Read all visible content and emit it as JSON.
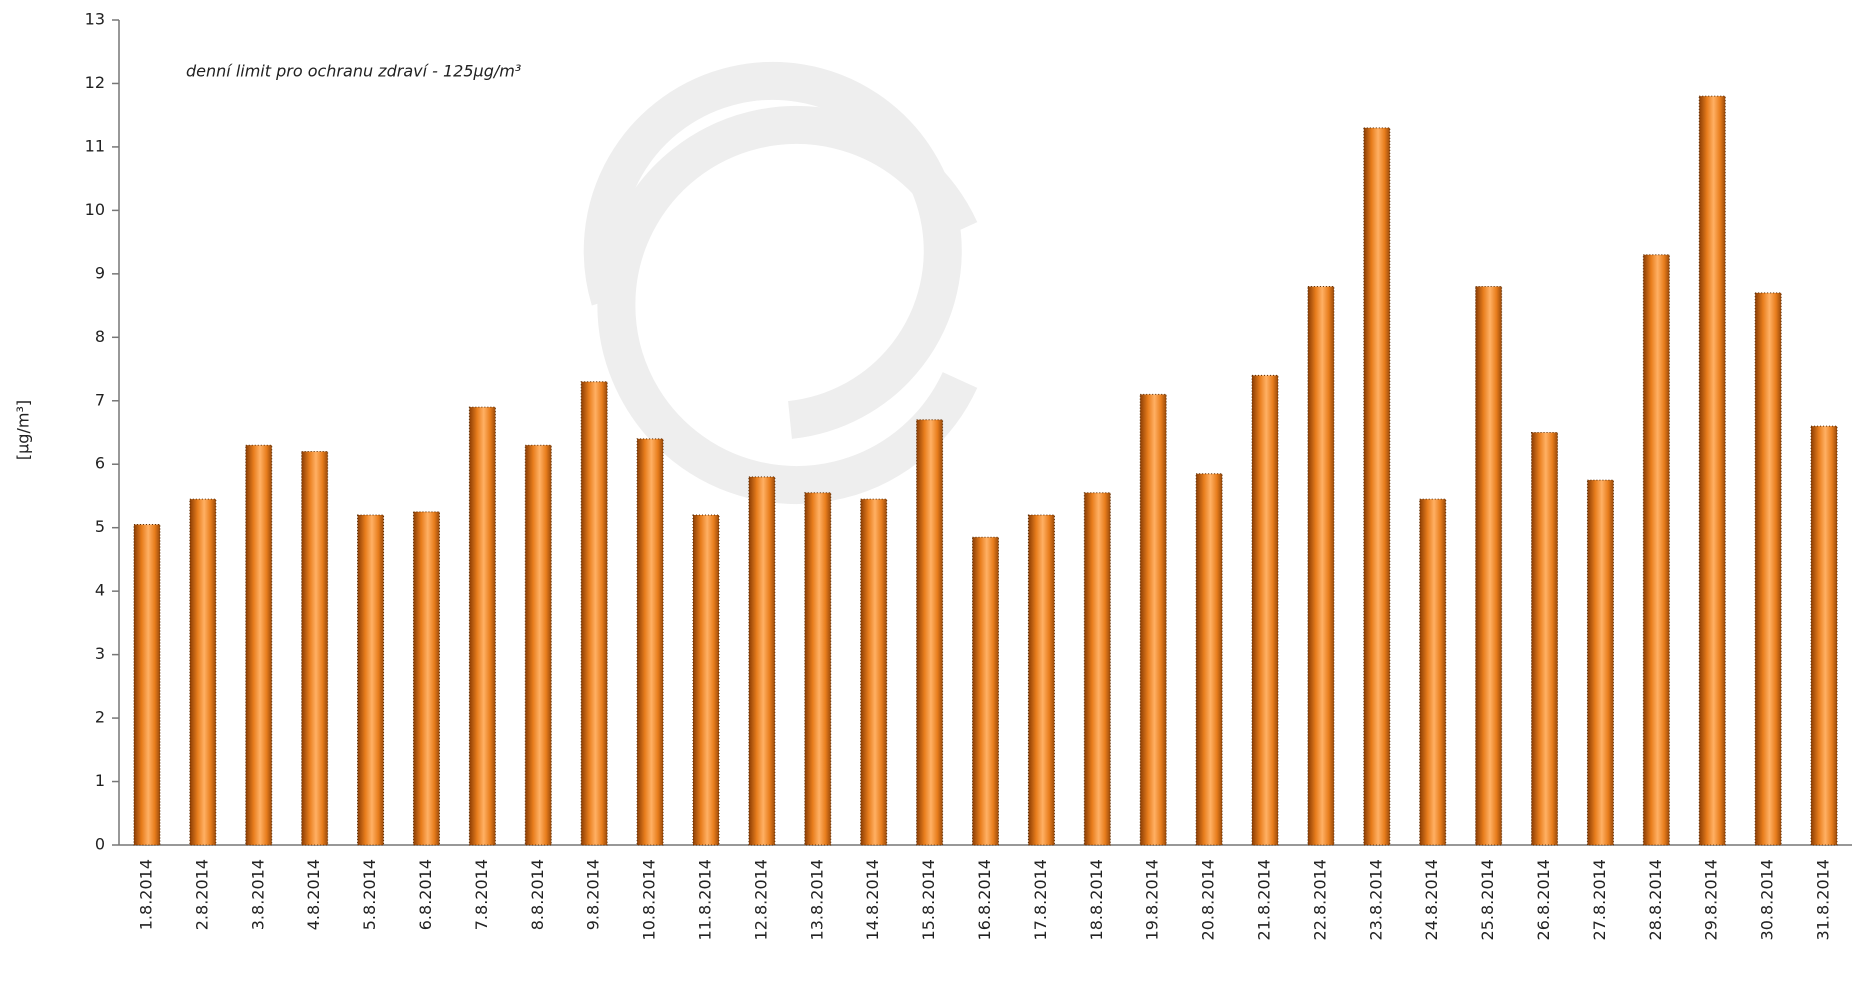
{
  "chart_data": {
    "type": "bar",
    "y_label": "[µg/m³]",
    "annotation": "denní limit pro ochranu zdraví - 125µg/m³",
    "annotation_color": "#e8202a",
    "categories": [
      "1.8.2014",
      "2.8.2014",
      "3.8.2014",
      "4.8.2014",
      "5.8.2014",
      "6.8.2014",
      "7.8.2014",
      "8.8.2014",
      "9.8.2014",
      "10.8.2014",
      "11.8.2014",
      "12.8.2014",
      "13.8.2014",
      "14.8.2014",
      "15.8.2014",
      "16.8.2014",
      "17.8.2014",
      "18.8.2014",
      "19.8.2014",
      "20.8.2014",
      "21.8.2014",
      "22.8.2014",
      "23.8.2014",
      "24.8.2014",
      "25.8.2014",
      "26.8.2014",
      "27.8.2014",
      "28.8.2014",
      "29.8.2014",
      "30.8.2014",
      "31.8.2014"
    ],
    "values": [
      5.05,
      5.45,
      6.3,
      6.2,
      5.2,
      5.25,
      6.9,
      6.3,
      7.3,
      6.4,
      5.2,
      5.8,
      5.55,
      5.45,
      6.7,
      4.85,
      5.2,
      5.55,
      7.1,
      5.85,
      7.4,
      8.8,
      11.3,
      5.45,
      8.8,
      6.5,
      5.75,
      9.3,
      11.8,
      8.7,
      6.6
    ],
    "color": "#f08a24",
    "ylim": [
      0,
      13
    ],
    "yticks": [
      0,
      1,
      2,
      3,
      4,
      5,
      6,
      7,
      8,
      9,
      10,
      11,
      12,
      13
    ],
    "grid": false
  }
}
